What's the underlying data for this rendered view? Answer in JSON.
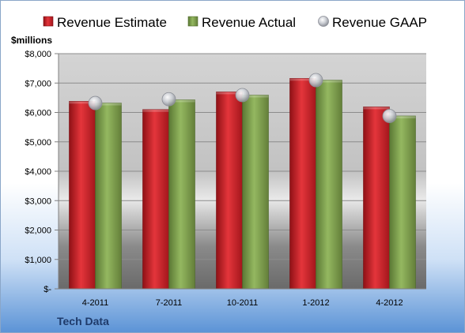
{
  "chart_data": {
    "type": "bar",
    "title": "",
    "xlabel": "",
    "ylabel": "$millions",
    "footer_label": "Tech Data",
    "categories": [
      "4-2011",
      "7-2011",
      "10-2011",
      "1-2012",
      "4-2012"
    ],
    "series": [
      {
        "name": "Revenue Estimate",
        "type": "bar",
        "color": "#cc2229",
        "values": [
          6380,
          6100,
          6700,
          7160,
          6190
        ]
      },
      {
        "name": "Revenue Actual",
        "type": "bar",
        "color": "#7fa24d",
        "values": [
          6320,
          6430,
          6590,
          7100,
          5880
        ]
      },
      {
        "name": "Revenue GAAP",
        "type": "marker",
        "color": "#c8ccd4",
        "values": [
          6320,
          6450,
          6590,
          7100,
          5880
        ]
      }
    ],
    "ylim": [
      0,
      8000
    ],
    "yticks": [
      0,
      1000,
      2000,
      3000,
      4000,
      5000,
      6000,
      7000,
      8000
    ],
    "ytick_labels": [
      "$-",
      "$1,000",
      "$2,000",
      "$3,000",
      "$4,000",
      "$5,000",
      "$6,000",
      "$7,000",
      "$8,000"
    ],
    "grid": true,
    "legend_position": "top"
  }
}
